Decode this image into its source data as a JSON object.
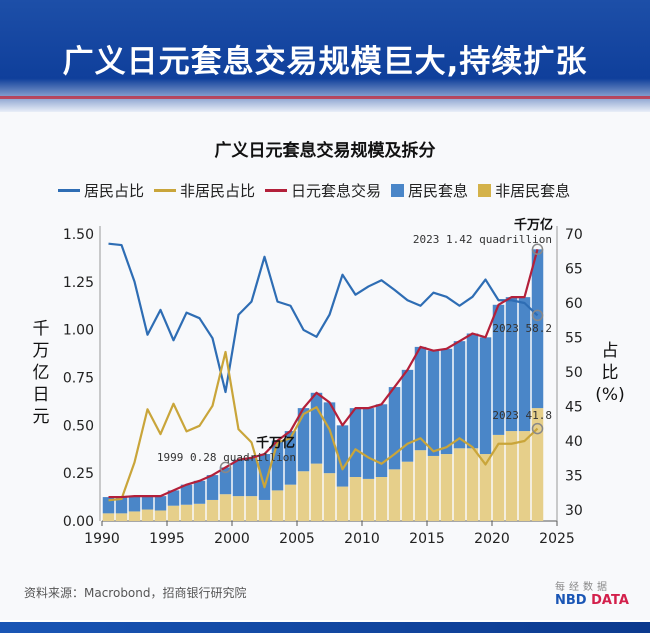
{
  "banner": {
    "title": "广义日元套息交易规模巨大,持续扩张"
  },
  "chart_data": {
    "type": "bar",
    "title": "广义日元套息交易规模及拆分",
    "left_ylabel": "千万亿日元",
    "right_ylabel_chars": [
      "占",
      "比"
    ],
    "right_ylabel_unit": "(%)",
    "x": [
      1990,
      1991,
      1992,
      1993,
      1994,
      1995,
      1996,
      1997,
      1998,
      1999,
      2000,
      2001,
      2002,
      2003,
      2004,
      2005,
      2006,
      2007,
      2008,
      2009,
      2010,
      2011,
      2012,
      2013,
      2014,
      2015,
      2016,
      2017,
      2018,
      2019,
      2020,
      2021,
      2022,
      2023
    ],
    "xlim": [
      1990,
      2025
    ],
    "xticks": [
      "1990",
      "1995",
      "2000",
      "2005",
      "2010",
      "2015",
      "2020",
      "2025"
    ],
    "ylim_left": [
      0,
      1.5
    ],
    "yticks_left": [
      "0.00",
      "0.25",
      "0.50",
      "0.75",
      "1.00",
      "1.25",
      "1.50"
    ],
    "ylim_right": [
      30,
      70
    ],
    "yticks_right": [
      "30",
      "35",
      "40",
      "45",
      "50",
      "55",
      "60",
      "65",
      "70"
    ],
    "series": [
      {
        "name": "居民占比",
        "kind": "line",
        "axis": "right",
        "color": "#2e6db4",
        "values": [
          68.6,
          68.4,
          63.1,
          55.4,
          59.0,
          54.6,
          58.6,
          57.8,
          54.9,
          47.1,
          58.3,
          60.2,
          66.7,
          60.2,
          59.6,
          56.1,
          55.1,
          58.3,
          64.1,
          61.2,
          62.4,
          63.3,
          61.9,
          60.4,
          59.6,
          61.5,
          60.9,
          59.6,
          60.9,
          63.4,
          60.4,
          60.4,
          60.0,
          58.2
        ]
      },
      {
        "name": "非居民占比",
        "kind": "line",
        "axis": "right",
        "color": "#c9a53a",
        "values": [
          31.4,
          31.6,
          36.9,
          44.6,
          41.0,
          45.4,
          41.4,
          42.2,
          45.1,
          52.9,
          41.7,
          39.8,
          33.3,
          39.8,
          40.4,
          43.9,
          44.9,
          41.7,
          35.9,
          38.8,
          37.6,
          36.7,
          38.1,
          39.6,
          40.4,
          38.5,
          39.1,
          40.4,
          39.1,
          36.6,
          39.6,
          39.6,
          40.0,
          41.8
        ]
      },
      {
        "name": "日元套息交易",
        "kind": "line",
        "axis": "left",
        "color": "#b3203a",
        "values": [
          0.125,
          0.125,
          0.13,
          0.13,
          0.13,
          0.16,
          0.19,
          0.21,
          0.24,
          0.28,
          0.32,
          0.33,
          0.35,
          0.42,
          0.47,
          0.59,
          0.67,
          0.62,
          0.5,
          0.59,
          0.59,
          0.61,
          0.7,
          0.79,
          0.91,
          0.89,
          0.9,
          0.94,
          0.98,
          0.96,
          1.13,
          1.17,
          1.17,
          1.42
        ]
      },
      {
        "name": "居民套息",
        "kind": "bar",
        "axis": "left",
        "color": "#4a86c8",
        "values": [
          0.085,
          0.085,
          0.08,
          0.07,
          0.075,
          0.08,
          0.105,
          0.12,
          0.13,
          0.14,
          0.19,
          0.2,
          0.24,
          0.26,
          0.28,
          0.33,
          0.37,
          0.37,
          0.32,
          0.36,
          0.37,
          0.38,
          0.43,
          0.48,
          0.54,
          0.55,
          0.55,
          0.56,
          0.6,
          0.61,
          0.68,
          0.7,
          0.7,
          0.83
        ]
      },
      {
        "name": "非居民套息",
        "kind": "bar",
        "axis": "left",
        "color": "#e6cf8a",
        "values": [
          0.04,
          0.04,
          0.05,
          0.06,
          0.055,
          0.08,
          0.085,
          0.09,
          0.11,
          0.14,
          0.13,
          0.13,
          0.11,
          0.16,
          0.19,
          0.26,
          0.3,
          0.25,
          0.18,
          0.23,
          0.22,
          0.23,
          0.27,
          0.31,
          0.37,
          0.34,
          0.35,
          0.38,
          0.38,
          0.35,
          0.45,
          0.47,
          0.47,
          0.59
        ]
      }
    ],
    "annotations": [
      {
        "unit": "千万亿",
        "text": "2023 1.42 quadrillion"
      },
      {
        "text": "2023 58.2"
      },
      {
        "text": "2023 41.8"
      },
      {
        "unit": "千万亿",
        "text": "1999 0.28 quadrillion"
      }
    ],
    "legend_position": "top"
  },
  "footer": {
    "source": "资料来源：Macrobond，招商银行研究院",
    "logo_cn": "每经数据",
    "logo_en_1": "NBD",
    "logo_en_2": "DATA"
  }
}
